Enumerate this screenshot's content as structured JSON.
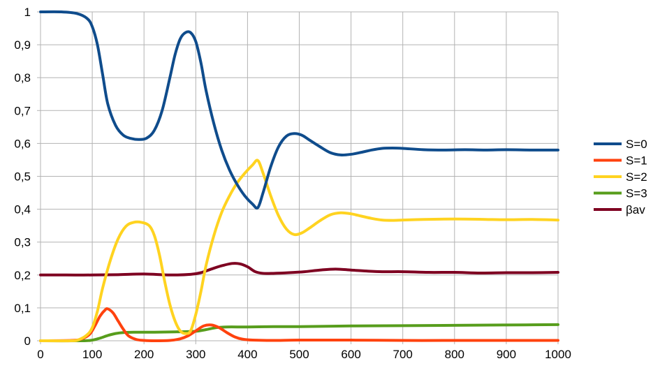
{
  "chart_data": {
    "type": "line",
    "title": "",
    "xlabel": "",
    "ylabel": "",
    "xlim": [
      0,
      1000
    ],
    "ylim": [
      0,
      1
    ],
    "x_ticks": [
      "0",
      "100",
      "200",
      "300",
      "400",
      "500",
      "600",
      "700",
      "800",
      "900",
      "1000"
    ],
    "y_ticks": [
      "0",
      "0,1",
      "0,2",
      "0,3",
      "0,4",
      "0,5",
      "0,6",
      "0,7",
      "0,8",
      "0,9",
      "1"
    ],
    "grid": true,
    "legend_position": "right",
    "series": [
      {
        "name": "S=0",
        "color": "#0f4c8c",
        "points": [
          [
            0,
            1.0
          ],
          [
            40,
            1.0
          ],
          [
            70,
            0.995
          ],
          [
            90,
            0.98
          ],
          [
            100,
            0.955
          ],
          [
            110,
            0.9
          ],
          [
            120,
            0.81
          ],
          [
            130,
            0.72
          ],
          [
            145,
            0.655
          ],
          [
            160,
            0.625
          ],
          [
            175,
            0.615
          ],
          [
            190,
            0.612
          ],
          [
            205,
            0.616
          ],
          [
            220,
            0.64
          ],
          [
            235,
            0.7
          ],
          [
            250,
            0.8
          ],
          [
            260,
            0.87
          ],
          [
            270,
            0.918
          ],
          [
            280,
            0.937
          ],
          [
            290,
            0.937
          ],
          [
            300,
            0.91
          ],
          [
            310,
            0.845
          ],
          [
            320,
            0.76
          ],
          [
            335,
            0.66
          ],
          [
            350,
            0.58
          ],
          [
            365,
            0.52
          ],
          [
            380,
            0.475
          ],
          [
            395,
            0.44
          ],
          [
            410,
            0.415
          ],
          [
            420,
            0.405
          ],
          [
            430,
            0.45
          ],
          [
            445,
            0.53
          ],
          [
            460,
            0.59
          ],
          [
            475,
            0.622
          ],
          [
            490,
            0.63
          ],
          [
            505,
            0.625
          ],
          [
            520,
            0.61
          ],
          [
            540,
            0.59
          ],
          [
            560,
            0.572
          ],
          [
            580,
            0.565
          ],
          [
            600,
            0.567
          ],
          [
            620,
            0.573
          ],
          [
            640,
            0.58
          ],
          [
            660,
            0.585
          ],
          [
            680,
            0.586
          ],
          [
            700,
            0.585
          ],
          [
            740,
            0.581
          ],
          [
            780,
            0.58
          ],
          [
            820,
            0.581
          ],
          [
            860,
            0.58
          ],
          [
            900,
            0.581
          ],
          [
            950,
            0.58
          ],
          [
            1000,
            0.58
          ]
        ]
      },
      {
        "name": "S=1",
        "color": "#ff420e",
        "points": [
          [
            0,
            0.0
          ],
          [
            60,
            0.001
          ],
          [
            80,
            0.006
          ],
          [
            95,
            0.02
          ],
          [
            105,
            0.045
          ],
          [
            115,
            0.075
          ],
          [
            125,
            0.094
          ],
          [
            130,
            0.097
          ],
          [
            140,
            0.085
          ],
          [
            150,
            0.06
          ],
          [
            160,
            0.035
          ],
          [
            170,
            0.015
          ],
          [
            185,
            0.004
          ],
          [
            200,
            0.001
          ],
          [
            220,
            0.0
          ],
          [
            250,
            0.001
          ],
          [
            270,
            0.006
          ],
          [
            285,
            0.015
          ],
          [
            300,
            0.03
          ],
          [
            315,
            0.045
          ],
          [
            330,
            0.048
          ],
          [
            345,
            0.04
          ],
          [
            360,
            0.025
          ],
          [
            375,
            0.012
          ],
          [
            390,
            0.005
          ],
          [
            410,
            0.002
          ],
          [
            450,
            0.001
          ],
          [
            500,
            0.002
          ],
          [
            600,
            0.002
          ],
          [
            700,
            0.001
          ],
          [
            800,
            0.001
          ],
          [
            900,
            0.001
          ],
          [
            1000,
            0.001
          ]
        ]
      },
      {
        "name": "S=2",
        "color": "#ffd320",
        "points": [
          [
            0,
            0.0
          ],
          [
            60,
            0.0
          ],
          [
            75,
            0.004
          ],
          [
            90,
            0.018
          ],
          [
            100,
            0.04
          ],
          [
            110,
            0.09
          ],
          [
            120,
            0.16
          ],
          [
            135,
            0.245
          ],
          [
            150,
            0.31
          ],
          [
            165,
            0.348
          ],
          [
            180,
            0.36
          ],
          [
            195,
            0.36
          ],
          [
            210,
            0.35
          ],
          [
            220,
            0.32
          ],
          [
            230,
            0.26
          ],
          [
            240,
            0.18
          ],
          [
            250,
            0.11
          ],
          [
            260,
            0.06
          ],
          [
            270,
            0.03
          ],
          [
            280,
            0.022
          ],
          [
            290,
            0.03
          ],
          [
            300,
            0.08
          ],
          [
            310,
            0.15
          ],
          [
            320,
            0.23
          ],
          [
            335,
            0.32
          ],
          [
            350,
            0.39
          ],
          [
            365,
            0.44
          ],
          [
            380,
            0.48
          ],
          [
            395,
            0.51
          ],
          [
            410,
            0.535
          ],
          [
            420,
            0.548
          ],
          [
            430,
            0.51
          ],
          [
            445,
            0.44
          ],
          [
            460,
            0.38
          ],
          [
            475,
            0.34
          ],
          [
            490,
            0.323
          ],
          [
            505,
            0.328
          ],
          [
            520,
            0.343
          ],
          [
            540,
            0.365
          ],
          [
            560,
            0.383
          ],
          [
            580,
            0.389
          ],
          [
            600,
            0.386
          ],
          [
            620,
            0.379
          ],
          [
            640,
            0.372
          ],
          [
            660,
            0.367
          ],
          [
            680,
            0.366
          ],
          [
            700,
            0.367
          ],
          [
            740,
            0.369
          ],
          [
            780,
            0.37
          ],
          [
            820,
            0.37
          ],
          [
            860,
            0.369
          ],
          [
            900,
            0.368
          ],
          [
            950,
            0.369
          ],
          [
            1000,
            0.367
          ]
        ]
      },
      {
        "name": "S=3",
        "color": "#579d1c",
        "points": [
          [
            0,
            0.0
          ],
          [
            80,
            0.0
          ],
          [
            100,
            0.002
          ],
          [
            115,
            0.008
          ],
          [
            130,
            0.016
          ],
          [
            145,
            0.022
          ],
          [
            160,
            0.025
          ],
          [
            180,
            0.026
          ],
          [
            220,
            0.026
          ],
          [
            260,
            0.027
          ],
          [
            300,
            0.029
          ],
          [
            320,
            0.034
          ],
          [
            340,
            0.04
          ],
          [
            360,
            0.042
          ],
          [
            400,
            0.042
          ],
          [
            450,
            0.043
          ],
          [
            500,
            0.043
          ],
          [
            600,
            0.045
          ],
          [
            700,
            0.046
          ],
          [
            800,
            0.047
          ],
          [
            900,
            0.048
          ],
          [
            1000,
            0.049
          ]
        ]
      },
      {
        "name": "βav",
        "color": "#7e0021",
        "points": [
          [
            0,
            0.2
          ],
          [
            50,
            0.2
          ],
          [
            100,
            0.2
          ],
          [
            150,
            0.201
          ],
          [
            200,
            0.203
          ],
          [
            250,
            0.2
          ],
          [
            290,
            0.202
          ],
          [
            310,
            0.207
          ],
          [
            330,
            0.218
          ],
          [
            350,
            0.228
          ],
          [
            370,
            0.235
          ],
          [
            385,
            0.234
          ],
          [
            400,
            0.225
          ],
          [
            415,
            0.21
          ],
          [
            430,
            0.205
          ],
          [
            450,
            0.205
          ],
          [
            480,
            0.207
          ],
          [
            510,
            0.21
          ],
          [
            540,
            0.215
          ],
          [
            570,
            0.218
          ],
          [
            600,
            0.215
          ],
          [
            630,
            0.212
          ],
          [
            660,
            0.21
          ],
          [
            700,
            0.21
          ],
          [
            750,
            0.208
          ],
          [
            800,
            0.208
          ],
          [
            850,
            0.206
          ],
          [
            900,
            0.207
          ],
          [
            950,
            0.207
          ],
          [
            1000,
            0.208
          ]
        ]
      }
    ]
  }
}
